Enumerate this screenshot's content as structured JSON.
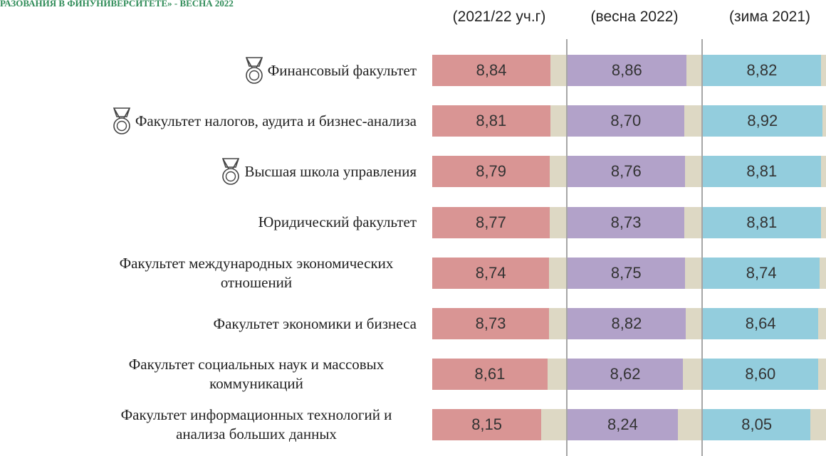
{
  "chart_data": {
    "type": "bar",
    "title": "РАЗОВАНИЯ В ФИНУНИВЕРСИТЕТЕ» - ВЕСНА 2022",
    "categories": [
      "Финансовый факультет",
      "Факультет налогов, аудита и бизнес-анализа",
      "Высшая школа управления",
      "Юридический факультет",
      "Факультет международных экономических отношений",
      "Факультет экономики и бизнеса",
      "Факультет социальных наук и массовых коммуникаций",
      "Факультет информационных технологий и анализа больших данных"
    ],
    "series": [
      {
        "name": "(2021/22 уч.г)",
        "color": "#d99594",
        "values": [
          8.84,
          8.81,
          8.79,
          8.77,
          8.74,
          8.73,
          8.61,
          8.15
        ],
        "value_labels": [
          "8,84",
          "8,81",
          "8,79",
          "8,77",
          "8,74",
          "8,73",
          "8,61",
          "8,15"
        ]
      },
      {
        "name": "(весна 2022)",
        "color": "#b2a2c9",
        "values": [
          8.86,
          8.7,
          8.76,
          8.73,
          8.75,
          8.82,
          8.62,
          8.24
        ],
        "value_labels": [
          "8,86",
          "8,70",
          "8,76",
          "8,73",
          "8,75",
          "8,82",
          "8,62",
          "8,24"
        ]
      },
      {
        "name": "(зима 2021)",
        "color": "#93cddd",
        "values": [
          8.82,
          8.92,
          8.81,
          8.81,
          8.74,
          8.64,
          8.6,
          8.05
        ],
        "value_labels": [
          "8,82",
          "8,92",
          "8,81",
          "8,81",
          "8,74",
          "8,64",
          "8,60",
          "8,05"
        ]
      }
    ],
    "xlim": [
      0,
      10
    ]
  }
}
